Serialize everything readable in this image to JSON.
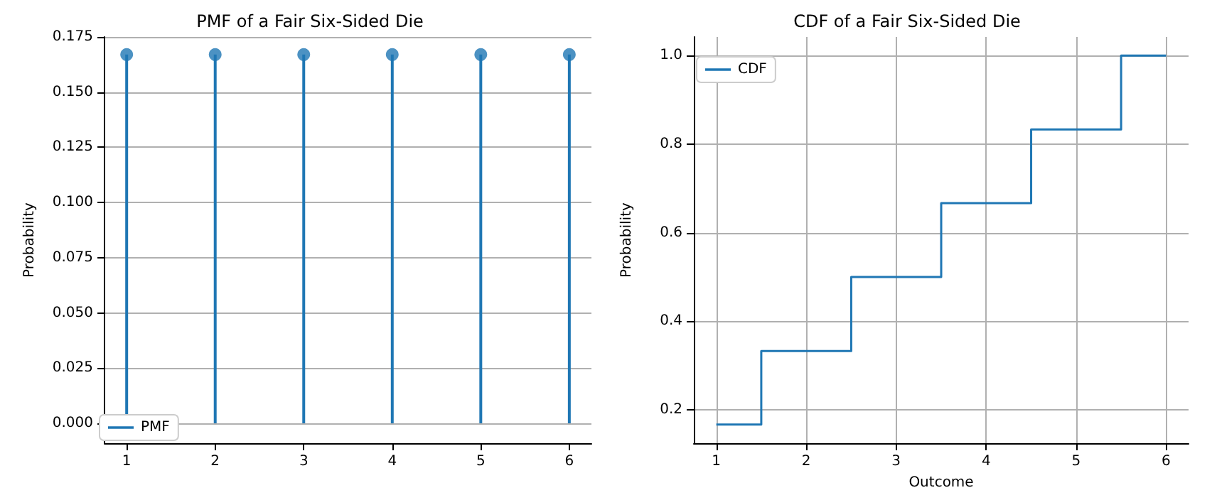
{
  "chart_data": [
    {
      "type": "lollipop",
      "title": "PMF of a Fair Six-Sided Die",
      "ylabel": "Probability",
      "x": [
        1,
        2,
        3,
        4,
        5,
        6
      ],
      "series": [
        {
          "name": "PMF",
          "color": "#1f77b4",
          "values": [
            0.167,
            0.167,
            0.167,
            0.167,
            0.167,
            0.167
          ]
        }
      ],
      "xlim": [
        0.75,
        6.25
      ],
      "xticks": [
        1,
        2,
        3,
        4,
        5,
        6
      ],
      "ylim": [
        -0.009,
        0.175
      ],
      "yticks": [
        {
          "value": 0,
          "label": "0.000"
        },
        {
          "value": 0.025,
          "label": "0.025"
        },
        {
          "value": 0.05,
          "label": "0.050"
        },
        {
          "value": 0.075,
          "label": "0.075"
        },
        {
          "value": 0.1,
          "label": "0.100"
        },
        {
          "value": 0.125,
          "label": "0.125"
        },
        {
          "value": 0.15,
          "label": "0.150"
        },
        {
          "value": 0.175,
          "label": "0.175"
        }
      ],
      "grid": "y",
      "legend": "bottom left",
      "marker": "circle"
    },
    {
      "type": "step",
      "title": "CDF of a Fair Six-Sided Die",
      "xlabel": "Outcome",
      "ylabel": "Probability",
      "x": [
        1,
        2,
        3,
        4,
        5,
        6
      ],
      "series": [
        {
          "name": "CDF",
          "color": "#1f77b4",
          "values": [
            0.167,
            0.333,
            0.5,
            0.667,
            0.833,
            1.0
          ]
        }
      ],
      "xlim": [
        0.75,
        6.25
      ],
      "xticks": [
        1,
        2,
        3,
        4,
        5,
        6
      ],
      "ylim": [
        0.125,
        1.042
      ],
      "yticks": [
        0.2,
        0.4,
        0.6,
        0.8,
        {
          "value": 1,
          "label": "1.0"
        }
      ],
      "grid": true,
      "legend": "top left",
      "marker": "none",
      "line_style": "solid"
    }
  ]
}
